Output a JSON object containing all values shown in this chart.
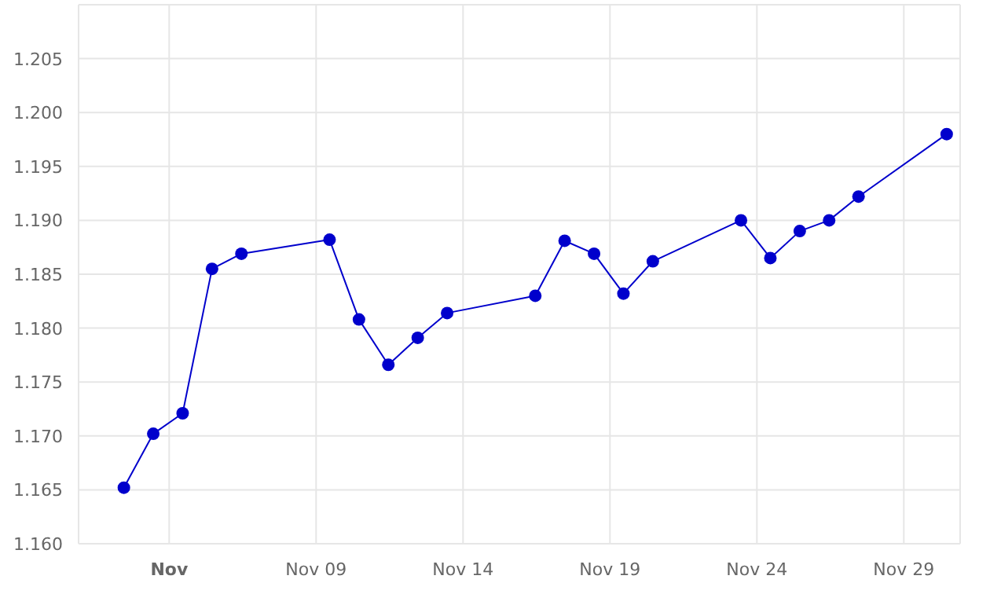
{
  "chart_data": {
    "type": "line",
    "x": [
      "--11-02T11:00",
      "--11-03T11:00",
      "--11-04T11:00",
      "--11-05T11:00",
      "--11-06T11:00",
      "--11-09T11:00",
      "--11-10T11:00",
      "--11-11T11:00",
      "--11-12T11:00",
      "--11-13T11:00",
      "--11-16T11:00",
      "--11-17T11:00",
      "--11-18T11:00",
      "--11-19T11:00",
      "--11-20T11:00",
      "--11-23T11:00",
      "--11-24T11:00",
      "--11-25T11:00",
      "--11-26T11:00",
      "--11-27T11:00",
      "--11-30T11:00"
    ],
    "series": [
      {
        "color": "#0000cc",
        "values": [
          1.1652,
          1.1702,
          1.1721,
          1.1855,
          1.1869,
          1.1882,
          1.1808,
          1.1766,
          1.1791,
          1.1814,
          1.183,
          1.1881,
          1.1869,
          1.1832,
          1.1862,
          1.19,
          1.1865,
          1.189,
          1.19,
          1.1922,
          1.198
        ]
      }
    ],
    "xlim": [
      "--10-31T22:00",
      "--11-30T22:00"
    ],
    "xticks": [
      {
        "value": "--11-04",
        "label": "Nov"
      },
      {
        "value": "--11-09",
        "label": "Nov 09"
      },
      {
        "value": "--11-14",
        "label": "Nov 14"
      },
      {
        "value": "--11-19",
        "label": "Nov 19"
      },
      {
        "value": "--11-24",
        "label": "Nov 24"
      },
      {
        "value": "--11-29",
        "label": "Nov 29"
      }
    ],
    "ylim": [
      1.16,
      1.21
    ],
    "yticks": [
      {
        "value": 1.16,
        "label": "1.160"
      },
      1.165,
      {
        "value": 1.17,
        "label": "1.170"
      },
      1.175,
      {
        "value": 1.18,
        "label": "1.180"
      },
      1.185,
      {
        "value": 1.19,
        "label": "1.190"
      },
      1.195,
      {
        "value": 1.2,
        "label": "1.200"
      },
      1.205,
      {
        "value": 1.21,
        "label": null
      }
    ],
    "grid": true,
    "marker": "circle",
    "line_style": "solid"
  }
}
